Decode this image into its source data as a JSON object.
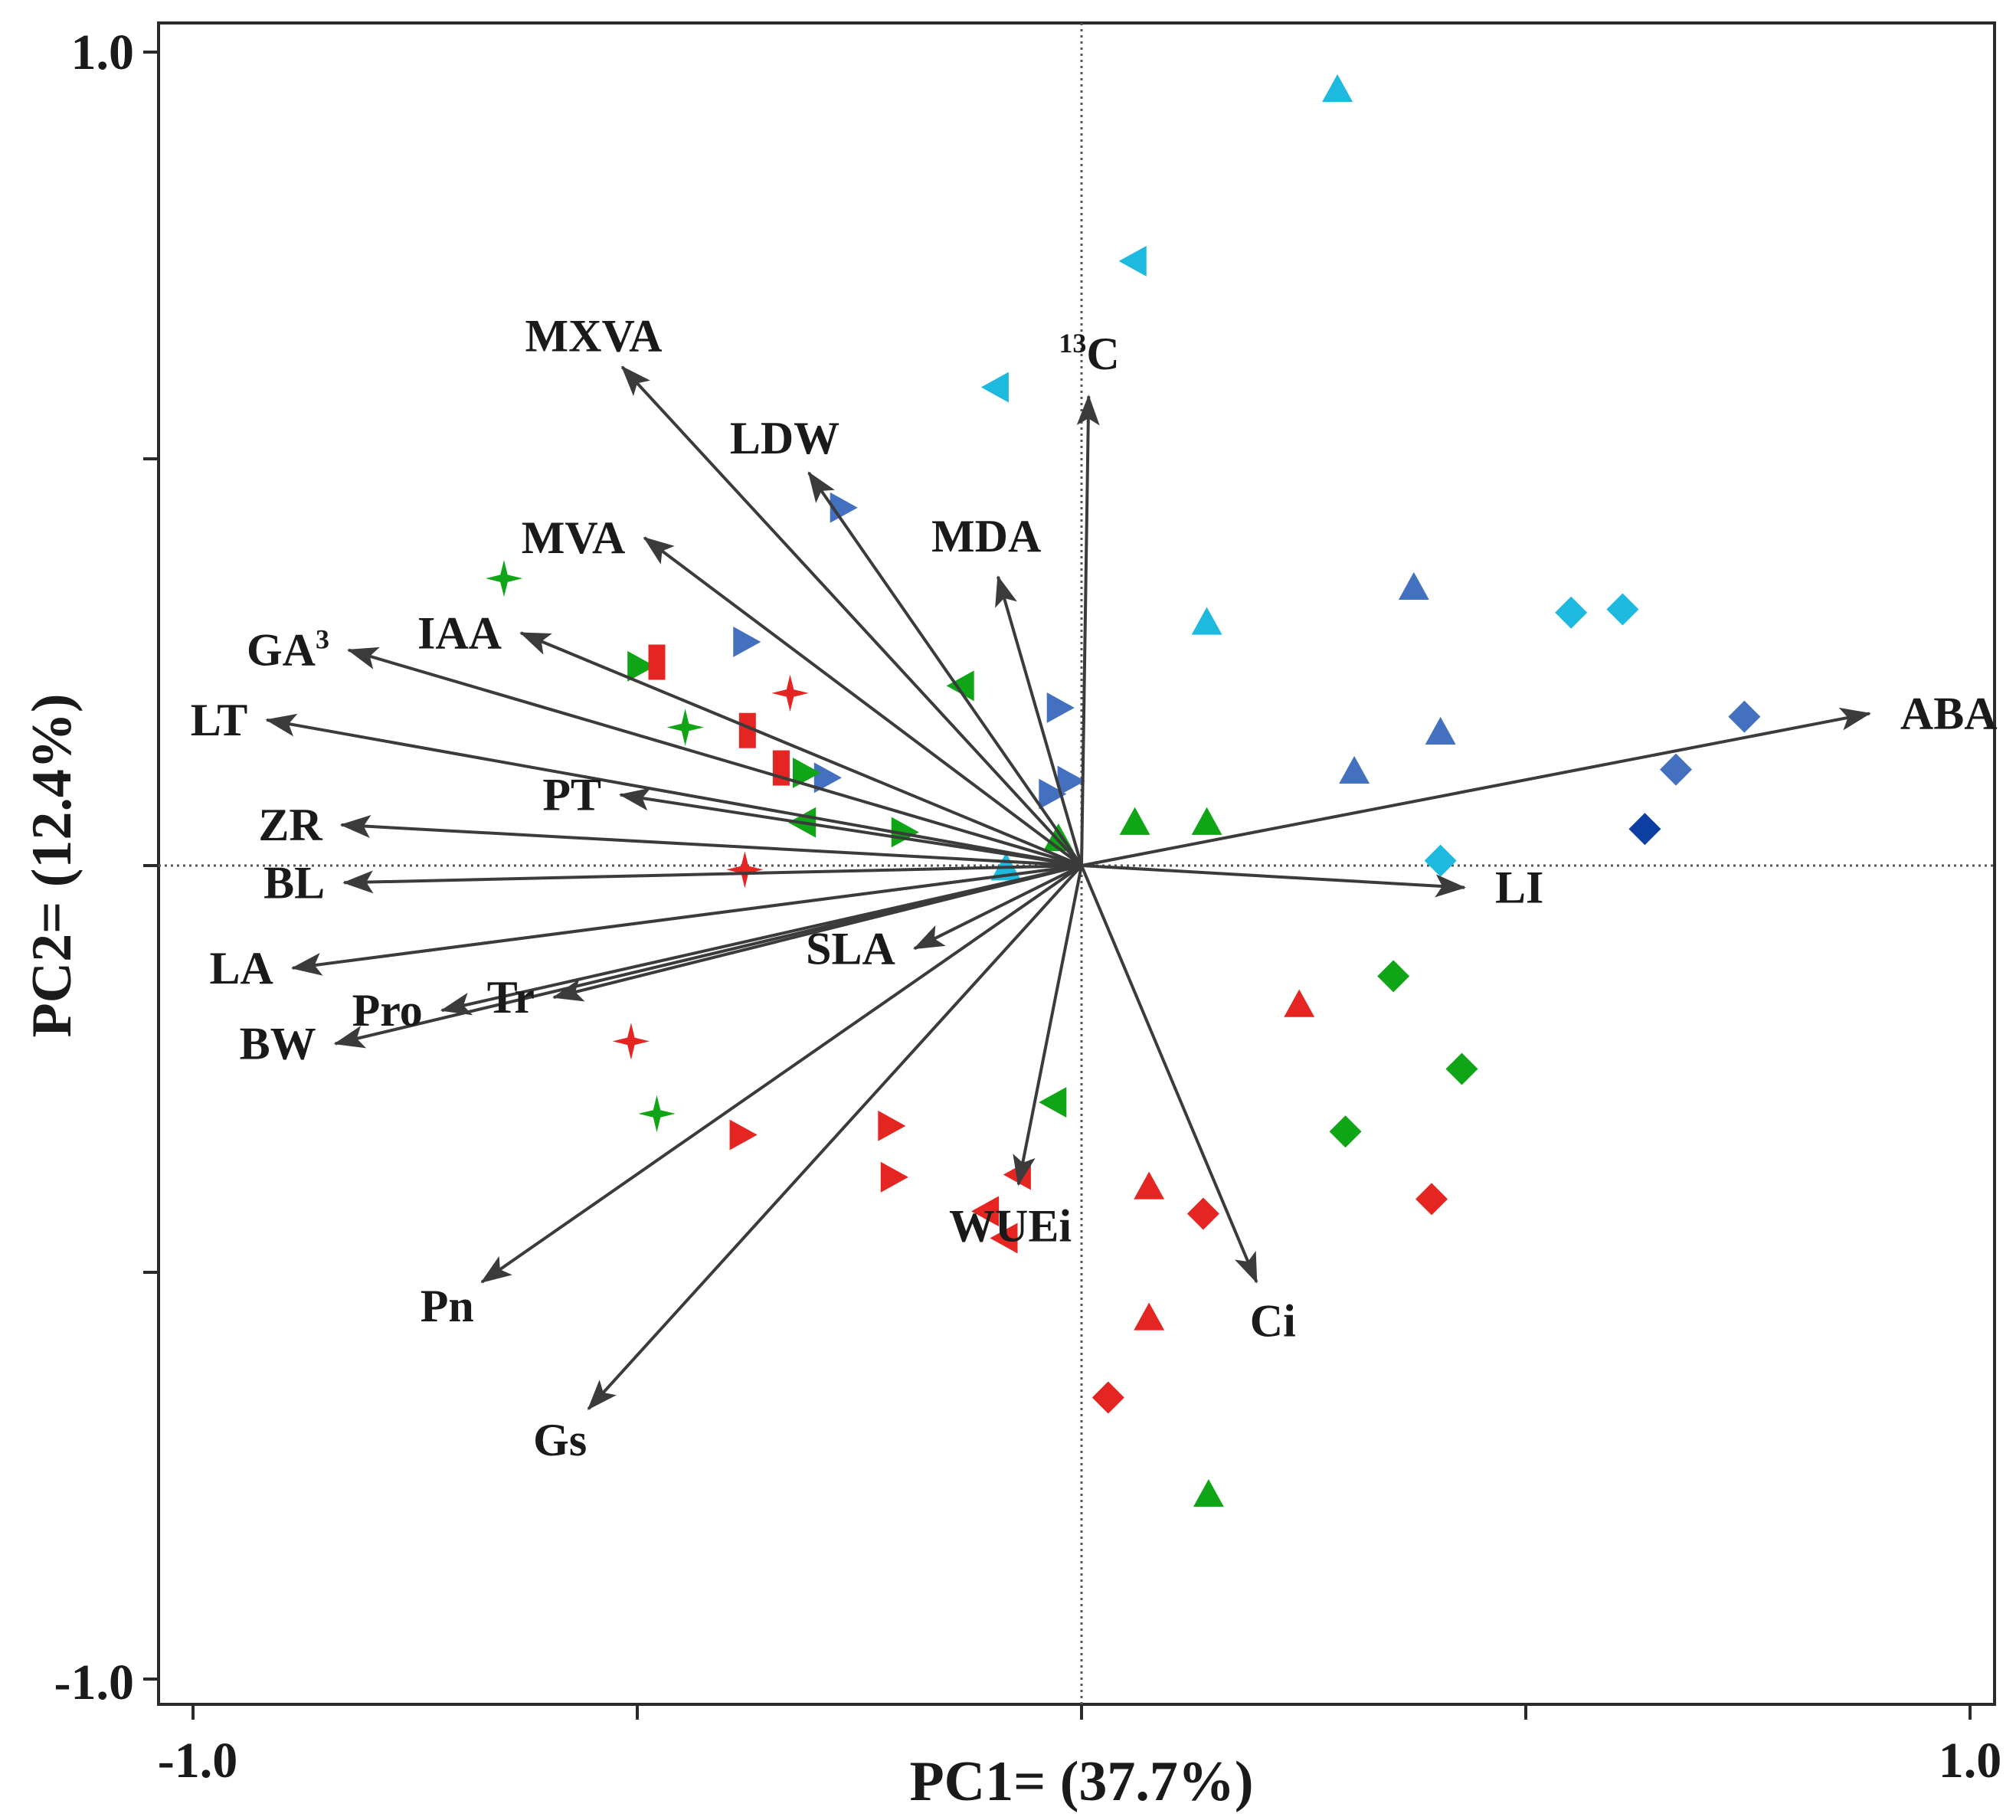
{
  "chart_data": {
    "type": "scatter",
    "title": "",
    "xlabel": "PC1= (37.7%)",
    "ylabel": "PC2= (12.4%)",
    "xlim": [
      -1.0,
      1.0
    ],
    "ylim": [
      -1.0,
      1.0
    ],
    "x_tick_labels": [
      "-1.0",
      "1.0"
    ],
    "y_tick_labels": [
      "1.0",
      "-1.0"
    ],
    "x_ticks": [
      -1.0,
      -0.5,
      0.0,
      0.5,
      1.0
    ],
    "y_ticks": [
      1.0,
      0.5,
      0.0,
      -0.5,
      -1.0
    ],
    "reference_lines": {
      "x": 0,
      "y": 0,
      "style": "dotted"
    },
    "grid": false,
    "legend": "none",
    "vectors": [
      {
        "label": "MXVA",
        "x": -0.517,
        "y": 0.613
      },
      {
        "label": "LDW",
        "x": -0.307,
        "y": 0.483
      },
      {
        "label": "MVA",
        "x": -0.492,
        "y": 0.403
      },
      {
        "label": "MDA",
        "x": -0.094,
        "y": 0.355
      },
      {
        "label": "13C",
        "label_base": "C",
        "label_sup": "13",
        "x": 0.008,
        "y": 0.577
      },
      {
        "label": "GA3",
        "label_base": "GA",
        "label_sup": "3",
        "x": -0.825,
        "y": 0.265
      },
      {
        "label": "IAA",
        "x": -0.631,
        "y": 0.286
      },
      {
        "label": "LT",
        "x": -0.917,
        "y": 0.179
      },
      {
        "label": "PT",
        "x": -0.519,
        "y": 0.087
      },
      {
        "label": "ZR",
        "x": -0.833,
        "y": 0.05
      },
      {
        "label": "BL",
        "x": -0.83,
        "y": -0.021
      },
      {
        "label": "LA",
        "x": -0.888,
        "y": -0.126
      },
      {
        "label": "Pro",
        "x": -0.72,
        "y": -0.178
      },
      {
        "label": "Tr",
        "x": -0.594,
        "y": -0.162
      },
      {
        "label": "BW",
        "x": -0.84,
        "y": -0.219
      },
      {
        "label": "SLA",
        "x": -0.188,
        "y": -0.102
      },
      {
        "label": "Pn",
        "x": -0.675,
        "y": -0.512
      },
      {
        "label": "Gs",
        "x": -0.555,
        "y": -0.668
      },
      {
        "label": "WUEi",
        "x": -0.071,
        "y": -0.392
      },
      {
        "label": "Ci",
        "x": 0.197,
        "y": -0.512
      },
      {
        "label": "LI",
        "x": 0.431,
        "y": -0.027
      },
      {
        "label": "ABA",
        "x": 0.887,
        "y": 0.187
      }
    ],
    "series": [
      {
        "name": "light-blue triangle up",
        "marker": "triangle-up",
        "color": "#1EB9DF",
        "points": [
          [
            0.288,
            0.953
          ],
          [
            0.141,
            0.298
          ],
          [
            -0.085,
            -0.004
          ]
        ]
      },
      {
        "name": "light-blue triangle left",
        "marker": "triangle-left",
        "color": "#1EB9DF",
        "points": [
          [
            0.06,
            0.743
          ],
          [
            -0.095,
            0.588
          ]
        ]
      },
      {
        "name": "light-blue diamond",
        "marker": "diamond",
        "color": "#1EB9DF",
        "points": [
          [
            0.551,
            0.311
          ],
          [
            0.609,
            0.315
          ],
          [
            0.404,
            0.006
          ]
        ]
      },
      {
        "name": "blue triangle up",
        "marker": "triangle-up",
        "color": "#4470C0",
        "points": [
          [
            0.374,
            0.341
          ],
          [
            0.404,
            0.163
          ],
          [
            0.307,
            0.115
          ]
        ]
      },
      {
        "name": "blue triangle right",
        "marker": "triangle-right",
        "color": "#4470C0",
        "points": [
          [
            -0.27,
            0.44
          ],
          [
            -0.379,
            0.275
          ],
          [
            -0.288,
            0.108
          ],
          [
            -0.026,
            0.194
          ],
          [
            -0.014,
            0.104
          ],
          [
            -0.035,
            0.088
          ]
        ]
      },
      {
        "name": "blue diamond",
        "marker": "diamond",
        "color": "#4470C0",
        "points": [
          [
            0.746,
            0.183
          ],
          [
            0.669,
            0.118
          ]
        ]
      },
      {
        "name": "dark blue diamond",
        "marker": "diamond",
        "color": "#0D3FA2",
        "points": [
          [
            0.634,
            0.045
          ]
        ]
      },
      {
        "name": "green star",
        "marker": "star",
        "color": "#10A517",
        "points": [
          [
            -0.65,
            0.353
          ],
          [
            -0.446,
            0.17
          ],
          [
            -0.478,
            -0.305
          ]
        ]
      },
      {
        "name": "green triangle right",
        "marker": "triangle-right",
        "color": "#10A517",
        "points": [
          [
            -0.498,
            0.245
          ],
          [
            -0.312,
            0.114
          ],
          [
            -0.201,
            0.041
          ]
        ]
      },
      {
        "name": "green triangle left",
        "marker": "triangle-left",
        "color": "#10A517",
        "points": [
          [
            -0.134,
            0.221
          ],
          [
            -0.312,
            0.053
          ],
          [
            -0.03,
            -0.291
          ]
        ]
      },
      {
        "name": "green triangle up",
        "marker": "triangle-up",
        "color": "#10A517",
        "points": [
          [
            -0.026,
            0.032
          ],
          [
            0.06,
            0.052
          ],
          [
            0.141,
            0.052
          ],
          [
            0.143,
            -0.774
          ]
        ]
      },
      {
        "name": "green diamond",
        "marker": "diamond",
        "color": "#10A517",
        "points": [
          [
            0.351,
            -0.136
          ],
          [
            0.428,
            -0.25
          ],
          [
            0.297,
            -0.327
          ]
        ]
      },
      {
        "name": "red star",
        "marker": "star",
        "color": "#E52522",
        "points": [
          [
            -0.328,
            0.212
          ],
          [
            -0.379,
            -0.005
          ],
          [
            -0.507,
            -0.216
          ]
        ]
      },
      {
        "name": "red square",
        "marker": "rect",
        "color": "#E52522",
        "points": [
          [
            -0.478,
            0.25
          ],
          [
            -0.376,
            0.166
          ],
          [
            -0.338,
            0.12
          ]
        ]
      },
      {
        "name": "red triangle right",
        "marker": "triangle-right",
        "color": "#E52522",
        "points": [
          [
            -0.383,
            -0.331
          ],
          [
            -0.216,
            -0.32
          ],
          [
            -0.213,
            -0.383
          ]
        ]
      },
      {
        "name": "red triangle left",
        "marker": "triangle-left",
        "color": "#E52522",
        "points": [
          [
            -0.07,
            -0.38
          ],
          [
            -0.106,
            -0.425
          ],
          [
            -0.085,
            -0.458
          ]
        ]
      },
      {
        "name": "red triangle up",
        "marker": "triangle-up",
        "color": "#E52522",
        "points": [
          [
            0.245,
            -0.172
          ],
          [
            0.076,
            -0.396
          ],
          [
            0.076,
            -0.557
          ]
        ]
      },
      {
        "name": "red diamond",
        "marker": "diamond",
        "color": "#E52522",
        "points": [
          [
            0.137,
            -0.428
          ],
          [
            0.394,
            -0.41
          ],
          [
            0.03,
            -0.654
          ]
        ]
      }
    ]
  }
}
